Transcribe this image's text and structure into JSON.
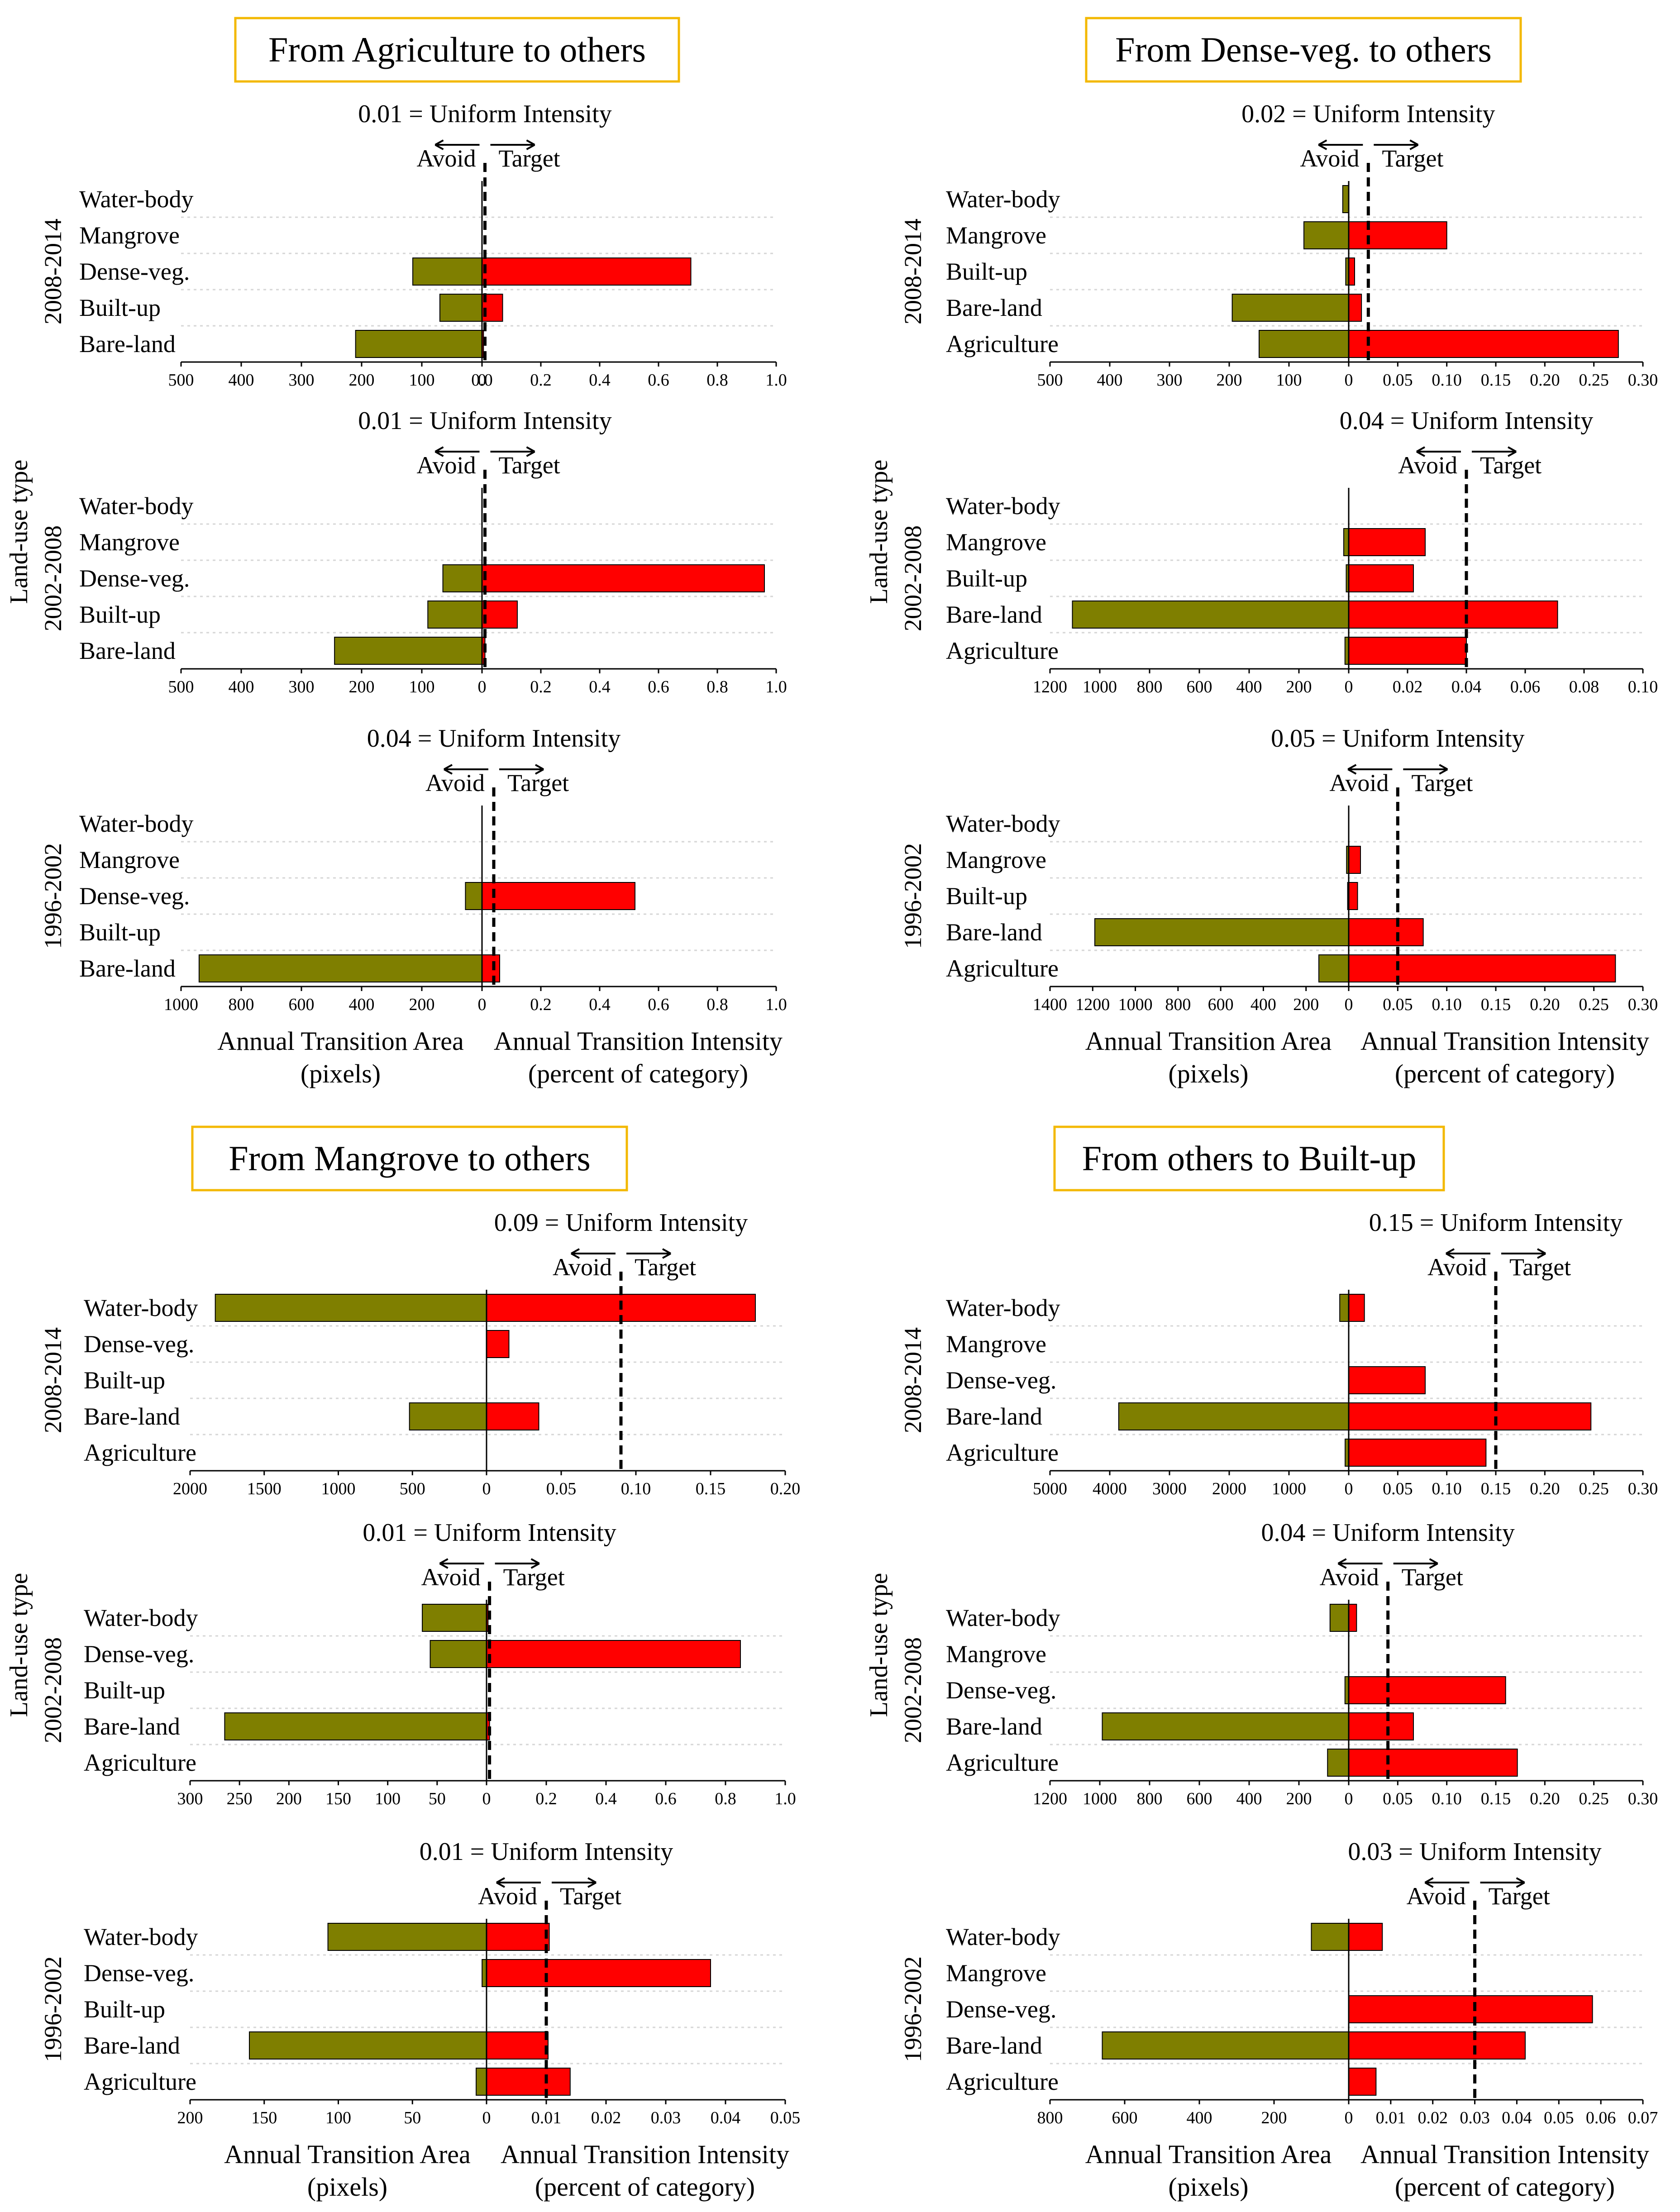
{
  "figure": {
    "y_label": "Land-use type",
    "x_label_area": "Annual Transition Area",
    "x_label_area_unit": "(pixels)",
    "x_label_int": "Annual Transition Intensity",
    "x_label_int_unit": "(percent of category)",
    "legend_avoid": "Avoid",
    "legend_target": "Target",
    "ui_suffix": " = Uniform Intensity",
    "colors": {
      "area_bar": "#7f7f00",
      "intensity_bar": "#ff0000",
      "title_border": "#f3b800"
    }
  },
  "chart_data": [
    {
      "type": "bar",
      "title": "From Agriculture to others",
      "panels": [
        {
          "period": "2008-2014",
          "uniform_intensity": 0.01,
          "uniform_label": "0.01",
          "categories": [
            "Water-body",
            "Mangrove",
            "Dense-veg.",
            "Built-up",
            "Bare-land"
          ],
          "area": [
            0,
            0,
            115,
            70,
            210
          ],
          "intensity": [
            0,
            0,
            0.71,
            0.07,
            0.005
          ],
          "area_max": 500,
          "area_ticks": [
            500,
            400,
            300,
            200,
            100,
            0.0
          ],
          "int_max": 1.0,
          "int_ticks": [
            0.0,
            0.2,
            0.4,
            0.6,
            0.8,
            1.0
          ],
          "int_tick_labels": [
            "0.0",
            "0.2",
            "0.4",
            "0.6",
            "0.8",
            "1.0"
          ]
        },
        {
          "period": "2002-2008",
          "uniform_intensity": 0.01,
          "uniform_label": "0.01",
          "categories": [
            "Water-body",
            "Mangrove",
            "Dense-veg.",
            "Built-up",
            "Bare-land"
          ],
          "area": [
            0,
            0,
            65,
            90,
            245
          ],
          "intensity": [
            0,
            0,
            0.96,
            0.12,
            0.01
          ],
          "area_max": 500,
          "area_ticks": [
            500,
            400,
            300,
            200,
            100,
            0
          ],
          "int_max": 1.0,
          "int_ticks": [
            0.2,
            0.4,
            0.6,
            0.8,
            1.0
          ],
          "int_tick_labels": [
            "0.2",
            "0.4",
            "0.6",
            "0.8",
            "1.0"
          ]
        },
        {
          "period": "1996-2002",
          "uniform_intensity": 0.04,
          "uniform_label": "0.04",
          "categories": [
            "Water-body",
            "Mangrove",
            "Dense-veg.",
            "Built-up",
            "Bare-land"
          ],
          "area": [
            0,
            0,
            55,
            0,
            940
          ],
          "intensity": [
            0,
            0,
            0.52,
            0.0,
            0.06
          ],
          "area_max": 1000,
          "area_ticks": [
            1000,
            800,
            600,
            400,
            200,
            0
          ],
          "int_max": 1.0,
          "int_ticks": [
            0.2,
            0.4,
            0.6,
            0.8,
            1.0
          ],
          "int_tick_labels": [
            "0.2",
            "0.4",
            "0.6",
            "0.8",
            "1.0"
          ]
        }
      ]
    },
    {
      "type": "bar",
      "title": "From Dense-veg. to others",
      "panels": [
        {
          "period": "2008-2014",
          "uniform_intensity": 0.02,
          "uniform_label": "0.02",
          "categories": [
            "Water-body",
            "Mangrove",
            "Built-up",
            "Bare-land",
            "Agriculture"
          ],
          "area": [
            10,
            75,
            5,
            195,
            150
          ],
          "intensity": [
            0,
            0.1,
            0.006,
            0.013,
            0.275
          ],
          "area_max": 500,
          "area_ticks": [
            500,
            400,
            300,
            200,
            100,
            0.0
          ],
          "int_max": 0.3,
          "int_ticks": [
            0.05,
            0.1,
            0.15,
            0.2,
            0.25,
            0.3
          ],
          "int_tick_labels": [
            "0.05",
            "0.10",
            "0.15",
            "0.20",
            "0.25",
            "0.30"
          ]
        },
        {
          "period": "2002-2008",
          "uniform_intensity": 0.04,
          "uniform_label": "0.04",
          "categories": [
            "Water-body",
            "Mangrove",
            "Built-up",
            "Bare-land",
            "Agriculture"
          ],
          "area": [
            0,
            20,
            10,
            1110,
            15
          ],
          "intensity": [
            0,
            0.026,
            0.022,
            0.071,
            0.04
          ],
          "area_max": 1200,
          "area_ticks": [
            1200,
            1000,
            800,
            600,
            400,
            200,
            0
          ],
          "int_max": 0.1,
          "int_ticks": [
            0.02,
            0.04,
            0.06,
            0.08,
            0.1
          ],
          "int_tick_labels": [
            "0.02",
            "0.04",
            "0.06",
            "0.08",
            "0.10"
          ]
        },
        {
          "period": "1996-2002",
          "uniform_intensity": 0.05,
          "uniform_label": "0.05",
          "categories": [
            "Water-body",
            "Mangrove",
            "Built-up",
            "Bare-land",
            "Agriculture"
          ],
          "area": [
            0,
            10,
            5,
            1190,
            140
          ],
          "intensity": [
            0,
            0.012,
            0.009,
            0.076,
            0.272
          ],
          "area_max": 1400,
          "area_ticks": [
            1400,
            1200,
            1000,
            800,
            600,
            400,
            200,
            0
          ],
          "int_max": 0.3,
          "int_ticks": [
            0.05,
            0.1,
            0.15,
            0.2,
            0.25,
            0.3
          ],
          "int_tick_labels": [
            "0.05",
            "0.10",
            "0.15",
            "0.20",
            "0.25",
            "0.30"
          ]
        }
      ]
    },
    {
      "type": "bar",
      "title": "From Mangrove to others",
      "panels": [
        {
          "period": "2008-2014",
          "uniform_intensity": 0.09,
          "uniform_label": "0.09",
          "categories": [
            "Water-body",
            "Dense-veg.",
            "Built-up",
            "Bare-land",
            "Agriculture"
          ],
          "area": [
            1830,
            0,
            0,
            520,
            0
          ],
          "intensity": [
            0.18,
            0.015,
            0,
            0.035,
            0
          ],
          "area_max": 2000,
          "area_ticks": [
            2000,
            1500,
            1000,
            500,
            0.0
          ],
          "int_max": 0.2,
          "int_ticks": [
            0.05,
            0.1,
            0.15,
            0.2
          ],
          "int_tick_labels": [
            "0.05",
            "0.10",
            "0.15",
            "0.20"
          ]
        },
        {
          "period": "2002-2008",
          "uniform_intensity": 0.01,
          "uniform_label": "0.01",
          "categories": [
            "Water-body",
            "Dense-veg.",
            "Built-up",
            "Bare-land",
            "Agriculture"
          ],
          "area": [
            65,
            57,
            0,
            265,
            0
          ],
          "intensity": [
            0.005,
            0.85,
            0,
            0.01,
            0
          ],
          "area_max": 300,
          "area_ticks": [
            300,
            250,
            200,
            150,
            100,
            50,
            0
          ],
          "int_max": 1.0,
          "int_ticks": [
            0.2,
            0.4,
            0.6,
            0.8,
            1.0
          ],
          "int_tick_labels": [
            "0.2",
            "0.4",
            "0.6",
            "0.8",
            "1.0"
          ]
        },
        {
          "period": "1996-2002",
          "uniform_intensity": 0.01,
          "uniform_label": "0.01",
          "categories": [
            "Water-body",
            "Dense-veg.",
            "Built-up",
            "Bare-land",
            "Agriculture"
          ],
          "area": [
            107,
            3,
            0,
            160,
            7
          ],
          "intensity": [
            0.0105,
            0.0375,
            0,
            0.0103,
            0.014
          ],
          "area_max": 200,
          "area_ticks": [
            200,
            150,
            100,
            50,
            0
          ],
          "int_max": 0.05,
          "int_ticks": [
            0.01,
            0.02,
            0.03,
            0.04,
            0.05
          ],
          "int_tick_labels": [
            "0.01",
            "0.02",
            "0.03",
            "0.04",
            "0.05"
          ]
        }
      ]
    },
    {
      "type": "bar",
      "title": "From others to Built-up",
      "panels": [
        {
          "period": "2008-2014",
          "uniform_intensity": 0.15,
          "uniform_label": "0.15",
          "categories": [
            "Water-body",
            "Mangrove",
            "Dense-veg.",
            "Bare-land",
            "Agriculture"
          ],
          "area": [
            150,
            0,
            0,
            3850,
            60
          ],
          "intensity": [
            0.016,
            0,
            0.078,
            0.247,
            0.14
          ],
          "area_max": 5000,
          "area_ticks": [
            5000,
            4000,
            3000,
            2000,
            1000,
            0.0
          ],
          "int_max": 0.3,
          "int_ticks": [
            0.05,
            0.1,
            0.15,
            0.2,
            0.25,
            0.3
          ],
          "int_tick_labels": [
            "0.05",
            "0.10",
            "0.15",
            "0.20",
            "0.25",
            "0.30"
          ]
        },
        {
          "period": "2002-2008",
          "uniform_intensity": 0.04,
          "uniform_label": "0.04",
          "categories": [
            "Water-body",
            "Mangrove",
            "Dense-veg.",
            "Bare-land",
            "Agriculture"
          ],
          "area": [
            75,
            0,
            15,
            990,
            85
          ],
          "intensity": [
            0.008,
            0,
            0.16,
            0.066,
            0.172
          ],
          "area_max": 1200,
          "area_ticks": [
            1200,
            1000,
            800,
            600,
            400,
            200,
            0
          ],
          "int_max": 0.3,
          "int_ticks": [
            0.05,
            0.1,
            0.15,
            0.2,
            0.25,
            0.3
          ],
          "int_tick_labels": [
            "0.05",
            "0.10",
            "0.15",
            "0.20",
            "0.25",
            "0.30"
          ]
        },
        {
          "period": "1996-2002",
          "uniform_intensity": 0.03,
          "uniform_label": "0.03",
          "categories": [
            "Water-body",
            "Mangrove",
            "Dense-veg.",
            "Bare-land",
            "Agriculture"
          ],
          "area": [
            100,
            0,
            0,
            660,
            0
          ],
          "intensity": [
            0.008,
            0,
            0.058,
            0.042,
            0.0065
          ],
          "area_max": 800,
          "area_ticks": [
            800,
            600,
            400,
            200,
            0
          ],
          "int_max": 0.07,
          "int_ticks": [
            0.01,
            0.02,
            0.03,
            0.04,
            0.05,
            0.06,
            0.07
          ],
          "int_tick_labels": [
            "0.01",
            "0.02",
            "0.03",
            "0.04",
            "0.05",
            "0.06",
            "0.07"
          ]
        }
      ]
    }
  ]
}
